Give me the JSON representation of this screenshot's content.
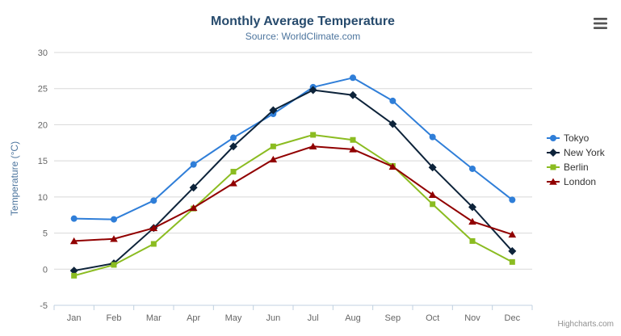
{
  "credits": "Highcharts.com",
  "menu_button": "context-menu",
  "chart_data": {
    "type": "line",
    "title": "Monthly Average Temperature",
    "subtitle": "Source: WorldClimate.com",
    "xlabel": "",
    "ylabel": "Temperature (°C)",
    "ylim": [
      -5,
      30
    ],
    "ytick_interval": 5,
    "grid": true,
    "legend_position": "right",
    "categories": [
      "Jan",
      "Feb",
      "Mar",
      "Apr",
      "May",
      "Jun",
      "Jul",
      "Aug",
      "Sep",
      "Oct",
      "Nov",
      "Dec"
    ],
    "series": [
      {
        "name": "Tokyo",
        "color": "#2f7ed8",
        "marker": "circle",
        "values": [
          7.0,
          6.9,
          9.5,
          14.5,
          18.2,
          21.5,
          25.2,
          26.5,
          23.3,
          18.3,
          13.9,
          9.6
        ]
      },
      {
        "name": "New York",
        "color": "#0d233a",
        "marker": "diamond",
        "values": [
          -0.2,
          0.8,
          5.7,
          11.3,
          17.0,
          22.0,
          24.8,
          24.1,
          20.1,
          14.1,
          8.6,
          2.5
        ]
      },
      {
        "name": "Berlin",
        "color": "#8bbc21",
        "marker": "square",
        "values": [
          -0.9,
          0.6,
          3.5,
          8.4,
          13.5,
          17.0,
          18.6,
          17.9,
          14.3,
          9.0,
          3.9,
          1.0
        ]
      },
      {
        "name": "London",
        "color": "#910000",
        "marker": "triangle",
        "values": [
          3.9,
          4.2,
          5.7,
          8.5,
          11.9,
          15.2,
          17.0,
          16.6,
          14.2,
          10.3,
          6.6,
          4.8
        ]
      }
    ]
  }
}
